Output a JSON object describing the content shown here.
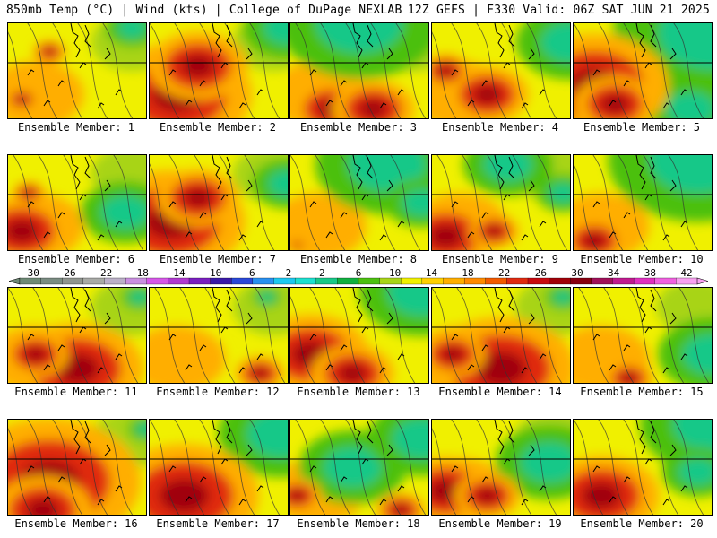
{
  "header": {
    "left": "850mb Temp (°C) | Wind (kts) | College of DuPage NEXLAB",
    "right": "12Z GEFS | F330 Valid: 06Z SAT JUN 21 2025"
  },
  "caption_prefix": "Ensemble Member: ",
  "members": [
    {
      "n": "1",
      "hot": [
        [
          0.1,
          0.8,
          0.1
        ],
        [
          0.3,
          0.3,
          0.1
        ]
      ],
      "cold": [
        [
          0.9,
          0.05,
          0.15
        ]
      ]
    },
    {
      "n": "2",
      "hot": [
        [
          0.2,
          0.75,
          0.45
        ],
        [
          0.35,
          0.45,
          0.3
        ]
      ],
      "cold": [
        [
          1.0,
          0.05,
          0.25
        ]
      ]
    },
    {
      "n": "3",
      "hot": [
        [
          0.3,
          0.9,
          0.25
        ],
        [
          0.6,
          0.9,
          0.25
        ]
      ],
      "cold": [
        [
          0.5,
          0.0,
          0.45
        ]
      ]
    },
    {
      "n": "4",
      "hot": [
        [
          0.4,
          0.75,
          0.25
        ],
        [
          0.1,
          0.5,
          0.15
        ]
      ],
      "cold": [
        [
          1.0,
          0.2,
          0.3
        ]
      ]
    },
    {
      "n": "5",
      "hot": [
        [
          0.15,
          0.65,
          0.45
        ],
        [
          0.3,
          0.85,
          0.25
        ]
      ],
      "cold": [
        [
          1.0,
          0.1,
          0.55
        ],
        [
          0.85,
          0.9,
          0.25
        ]
      ]
    },
    {
      "n": "6",
      "hot": [
        [
          0.1,
          0.8,
          0.3
        ],
        [
          0.15,
          0.4,
          0.1
        ]
      ],
      "cold": [
        [
          0.85,
          0.6,
          0.25
        ]
      ]
    },
    {
      "n": "7",
      "hot": [
        [
          0.15,
          0.7,
          0.45
        ],
        [
          0.35,
          0.45,
          0.25
        ]
      ],
      "cold": [
        [
          1.0,
          0.3,
          0.2
        ]
      ]
    },
    {
      "n": "8",
      "hot": [
        [
          0.05,
          0.95,
          0.05
        ]
      ],
      "cold": [
        [
          0.7,
          0.1,
          0.4
        ],
        [
          0.95,
          0.5,
          0.2
        ]
      ]
    },
    {
      "n": "9",
      "hot": [
        [
          0.1,
          0.85,
          0.3
        ],
        [
          0.45,
          0.8,
          0.15
        ]
      ],
      "cold": [
        [
          0.55,
          0.1,
          0.25
        ],
        [
          0.95,
          0.4,
          0.15
        ]
      ]
    },
    {
      "n": "10",
      "hot": [
        [
          0.15,
          0.9,
          0.2
        ]
      ],
      "cold": [
        [
          0.9,
          0.05,
          0.5
        ]
      ]
    },
    {
      "n": "11",
      "hot": [
        [
          0.5,
          0.85,
          0.4
        ],
        [
          0.2,
          0.7,
          0.2
        ]
      ],
      "cold": [
        [
          0.95,
          0.1,
          0.1
        ]
      ]
    },
    {
      "n": "12",
      "hot": [
        [
          0.8,
          0.9,
          0.15
        ]
      ],
      "cold": [
        [
          0.85,
          0.1,
          0.08
        ]
      ]
    },
    {
      "n": "13",
      "hot": [
        [
          0.15,
          0.7,
          0.35
        ],
        [
          0.45,
          0.9,
          0.25
        ]
      ],
      "cold": [
        [
          0.95,
          0.05,
          0.35
        ]
      ]
    },
    {
      "n": "14",
      "hot": [
        [
          0.5,
          0.85,
          0.45
        ],
        [
          0.15,
          0.7,
          0.2
        ]
      ],
      "cold": [
        [
          0.95,
          0.1,
          0.1
        ]
      ]
    },
    {
      "n": "15",
      "hot": [
        [
          0.4,
          0.95,
          0.15
        ]
      ],
      "cold": [
        [
          1.0,
          0.7,
          0.3
        ]
      ]
    },
    {
      "n": "16",
      "hot": [
        [
          0.3,
          0.65,
          0.55
        ],
        [
          0.25,
          0.95,
          0.3
        ]
      ],
      "cold": [
        [
          1.0,
          0.1,
          0.1
        ]
      ]
    },
    {
      "n": "17",
      "hot": [
        [
          0.25,
          0.8,
          0.45
        ]
      ],
      "cold": [
        [
          0.95,
          0.15,
          0.35
        ]
      ]
    },
    {
      "n": "18",
      "hot": [
        [
          0.05,
          0.8,
          0.15
        ],
        [
          0.8,
          0.95,
          0.15
        ]
      ],
      "cold": [
        [
          0.45,
          0.5,
          0.3
        ],
        [
          0.95,
          0.2,
          0.3
        ]
      ]
    },
    {
      "n": "19",
      "hot": [
        [
          0.1,
          0.75,
          0.3
        ],
        [
          0.4,
          0.8,
          0.2
        ]
      ],
      "cold": [
        [
          0.85,
          0.45,
          0.3
        ]
      ]
    },
    {
      "n": "20",
      "hot": [
        [
          0.2,
          0.8,
          0.35
        ]
      ],
      "cold": [
        [
          1.0,
          0.05,
          0.4
        ],
        [
          0.9,
          0.55,
          0.2
        ]
      ]
    }
  ],
  "colorbar": {
    "labels": [
      "−30",
      "−26",
      "−22",
      "−18",
      "−14",
      "−10",
      "−6",
      "−2",
      "2",
      "6",
      "10",
      "14",
      "18",
      "22",
      "26",
      "30",
      "34",
      "38",
      "42"
    ],
    "colors": [
      "#6e8a76",
      "#7a8c82",
      "#90958f",
      "#a8aaa6",
      "#bbb0c8",
      "#c98fe0",
      "#d657e8",
      "#b03ad0",
      "#7a1fc0",
      "#3a1aa8",
      "#2a48d8",
      "#2890f0",
      "#1cc8f0",
      "#1ce0d0",
      "#18c888",
      "#10b040",
      "#4cc010",
      "#a8d418",
      "#f0f000",
      "#ffd000",
      "#ffae00",
      "#ff8a00",
      "#f25a00",
      "#e02a10",
      "#c80a10",
      "#a00008",
      "#880010",
      "#a0105a",
      "#c01a90",
      "#e030c0",
      "#f060e0",
      "#f8a0f0"
    ]
  },
  "map_colors": {
    "cool": "#18c888",
    "green": "#4cc010",
    "lime": "#a8d418",
    "yellow": "#f0f000",
    "orange": "#ffae00",
    "red": "#e02a10",
    "darkred": "#a00008"
  }
}
